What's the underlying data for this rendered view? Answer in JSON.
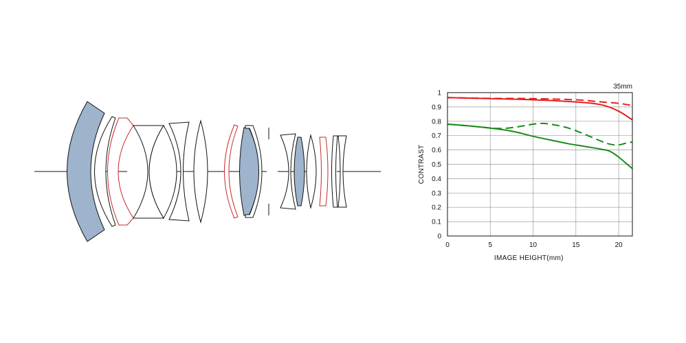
{
  "lens_diagram": {
    "fill_color": "#9eb3cc",
    "highlight_color": "#c4282c",
    "outline_color": "#111111"
  },
  "chart_data": {
    "type": "line",
    "title": "35mm",
    "xlabel": "IMAGE HEIGHT(mm)",
    "ylabel": "CONTRAST",
    "xlim": [
      0,
      21.6
    ],
    "ylim": [
      0,
      1
    ],
    "xticks": [
      "0",
      "5",
      "10",
      "15",
      "20"
    ],
    "yticks": [
      "0",
      "0.1",
      "0.2",
      "0.3",
      "0.4",
      "0.5",
      "0.6",
      "0.7",
      "0.8",
      "0.9",
      "1"
    ],
    "grid": true,
    "series": [
      {
        "color": "#e41e1e",
        "dash": false,
        "x": [
          0,
          5,
          10,
          15,
          18,
          20,
          21.6
        ],
        "y": [
          0.965,
          0.958,
          0.95,
          0.935,
          0.915,
          0.87,
          0.81
        ]
      },
      {
        "color": "#e41e1e",
        "dash": true,
        "x": [
          0,
          5,
          10,
          15,
          18,
          20,
          21.6
        ],
        "y": [
          0.965,
          0.96,
          0.958,
          0.95,
          0.935,
          0.925,
          0.91
        ]
      },
      {
        "color": "#168c16",
        "dash": false,
        "x": [
          0,
          3,
          6,
          8,
          10,
          12,
          14,
          16,
          18,
          19,
          20,
          21,
          21.6
        ],
        "y": [
          0.78,
          0.765,
          0.745,
          0.725,
          0.695,
          0.67,
          0.645,
          0.625,
          0.605,
          0.59,
          0.55,
          0.5,
          0.47
        ]
      },
      {
        "color": "#168c16",
        "dash": true,
        "x": [
          0,
          3,
          6,
          8,
          10,
          11,
          12,
          14,
          16,
          18,
          19,
          20,
          21,
          21.6
        ],
        "y": [
          0.78,
          0.765,
          0.75,
          0.76,
          0.78,
          0.785,
          0.78,
          0.755,
          0.71,
          0.66,
          0.64,
          0.635,
          0.65,
          0.655
        ]
      }
    ]
  }
}
